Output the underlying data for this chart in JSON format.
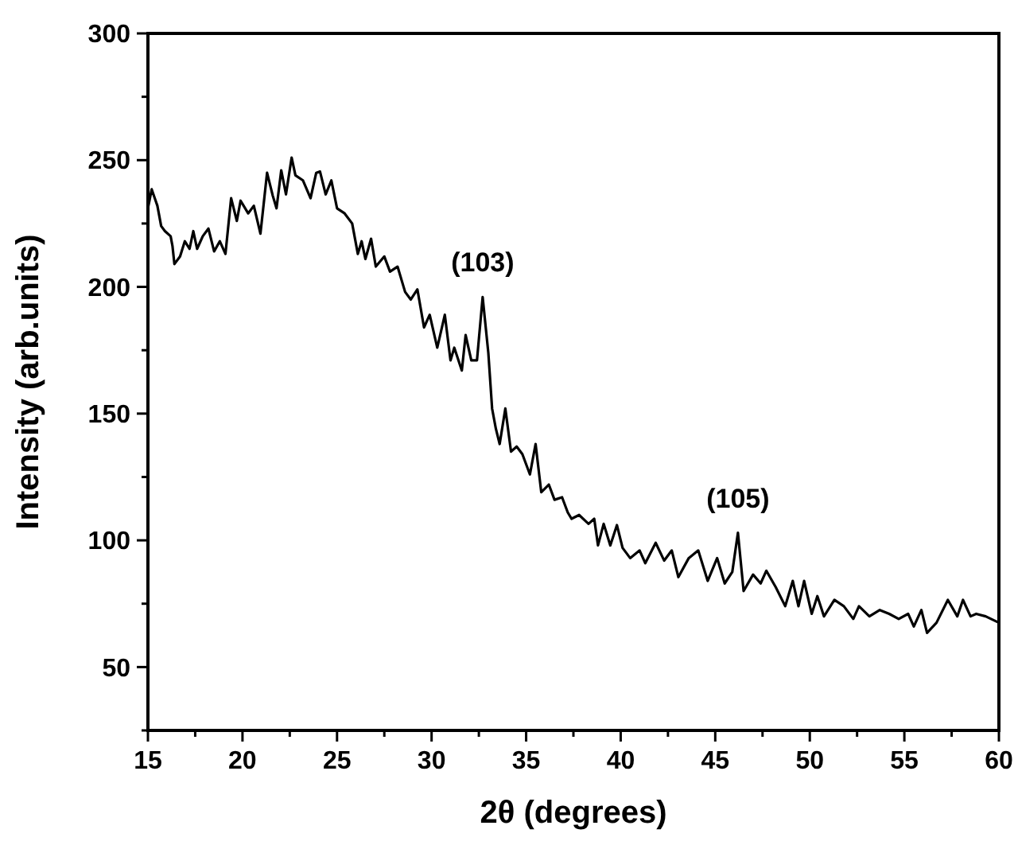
{
  "chart_data": {
    "type": "line",
    "xlabel": "2θ (degrees)",
    "ylabel": "Intensity (arb.units)",
    "xlim": [
      15,
      60
    ],
    "ylim": [
      25,
      300
    ],
    "xticks": [
      15,
      {
        "value": 17.5,
        "label": null
      },
      20,
      {
        "value": 22.5,
        "label": null
      },
      25,
      {
        "value": 27.5,
        "label": null
      },
      30,
      {
        "value": 32.5,
        "label": null
      },
      35,
      {
        "value": 37.5,
        "label": null
      },
      40,
      {
        "value": 42.5,
        "label": null
      },
      45,
      {
        "value": 47.5,
        "label": null
      },
      50,
      {
        "value": 52.5,
        "label": null
      },
      55,
      {
        "value": 57.5,
        "label": null
      },
      60
    ],
    "yticks": [
      {
        "value": 25,
        "label": null
      },
      50,
      {
        "value": 75,
        "label": null
      },
      100,
      {
        "value": 125,
        "label": null
      },
      150,
      {
        "value": 175,
        "label": null
      },
      200,
      {
        "value": 225,
        "label": null
      },
      250,
      {
        "value": 275,
        "label": null
      },
      300
    ],
    "grid": false,
    "line_style": "solid",
    "annotations": [
      {
        "text": "(103)",
        "x": 32.7,
        "y": 196
      },
      {
        "text": "(105)",
        "x": 46.2,
        "y": 103
      }
    ],
    "series": [
      {
        "color": "#000000",
        "x": [
          15,
          15.2,
          15.5,
          15.7,
          15.9,
          16.2,
          16.3,
          16.4,
          16.7,
          16.95,
          17.2,
          17.4,
          17.6,
          17.9,
          18.2,
          18.5,
          18.8,
          19.1,
          19.4,
          19.7,
          19.9,
          20.3,
          20.6,
          20.95,
          21.3,
          21.6,
          21.8,
          22.05,
          22.3,
          22.6,
          22.8,
          23.2,
          23.6,
          23.9,
          24.1,
          24.4,
          24.7,
          25,
          25.4,
          25.8,
          26.1,
          26.3,
          26.5,
          26.8,
          27.05,
          27.5,
          27.8,
          28.2,
          28.6,
          28.9,
          29.25,
          29.6,
          29.9,
          30.3,
          30.7,
          31,
          31.2,
          31.6,
          31.8,
          32.1,
          32.4,
          32.7,
          33,
          33.2,
          33.4,
          33.6,
          33.9,
          34.2,
          34.5,
          34.8,
          35.2,
          35.5,
          35.8,
          36.2,
          36.5,
          36.9,
          37.2,
          37.4,
          37.8,
          38.3,
          38.6,
          38.8,
          39.1,
          39.45,
          39.8,
          40.1,
          40.5,
          41,
          41.3,
          41.85,
          42.3,
          42.7,
          43.05,
          43.6,
          44.1,
          44.6,
          45.1,
          45.5,
          45.9,
          46.2,
          46.5,
          47,
          47.4,
          47.7,
          48.2,
          48.7,
          49.1,
          49.4,
          49.7,
          50.1,
          50.4,
          50.75,
          51.3,
          51.8,
          52.3,
          52.6,
          53.15,
          53.7,
          54.2,
          54.7,
          55.2,
          55.5,
          55.9,
          56.2,
          56.7,
          57.3,
          57.8,
          58.1,
          58.5,
          58.8,
          59.3,
          60
        ],
        "values": [
          231,
          238.5,
          232,
          224,
          222,
          220,
          216,
          209,
          212,
          218,
          215,
          222,
          215,
          220,
          223,
          214,
          218,
          213,
          235,
          226,
          234,
          229,
          232,
          221,
          245,
          236,
          231,
          246,
          236.5,
          251,
          244,
          242,
          235,
          245,
          245.5,
          236.5,
          242,
          231,
          229,
          225,
          213,
          218,
          211,
          219,
          208,
          212,
          206,
          208,
          198,
          195,
          199,
          184,
          189,
          176,
          189,
          171,
          176,
          167,
          181,
          171,
          171,
          196,
          174,
          152,
          144,
          138,
          152,
          135,
          137,
          134,
          126,
          138,
          119,
          122,
          116,
          117,
          111,
          108.5,
          110,
          106.5,
          108.5,
          98,
          106.5,
          98,
          106,
          97,
          93,
          96,
          91,
          99,
          92,
          96,
          85.5,
          93,
          96,
          84,
          93,
          83,
          87.5,
          103,
          80,
          86.5,
          83,
          88,
          81.5,
          74,
          84,
          74,
          84,
          71,
          78,
          70,
          76.5,
          74,
          69,
          74,
          70,
          72.5,
          71,
          69,
          71,
          66,
          72.5,
          63.5,
          67.5,
          76.5,
          70,
          76.5,
          70,
          71,
          70,
          67.5
        ]
      }
    ]
  }
}
